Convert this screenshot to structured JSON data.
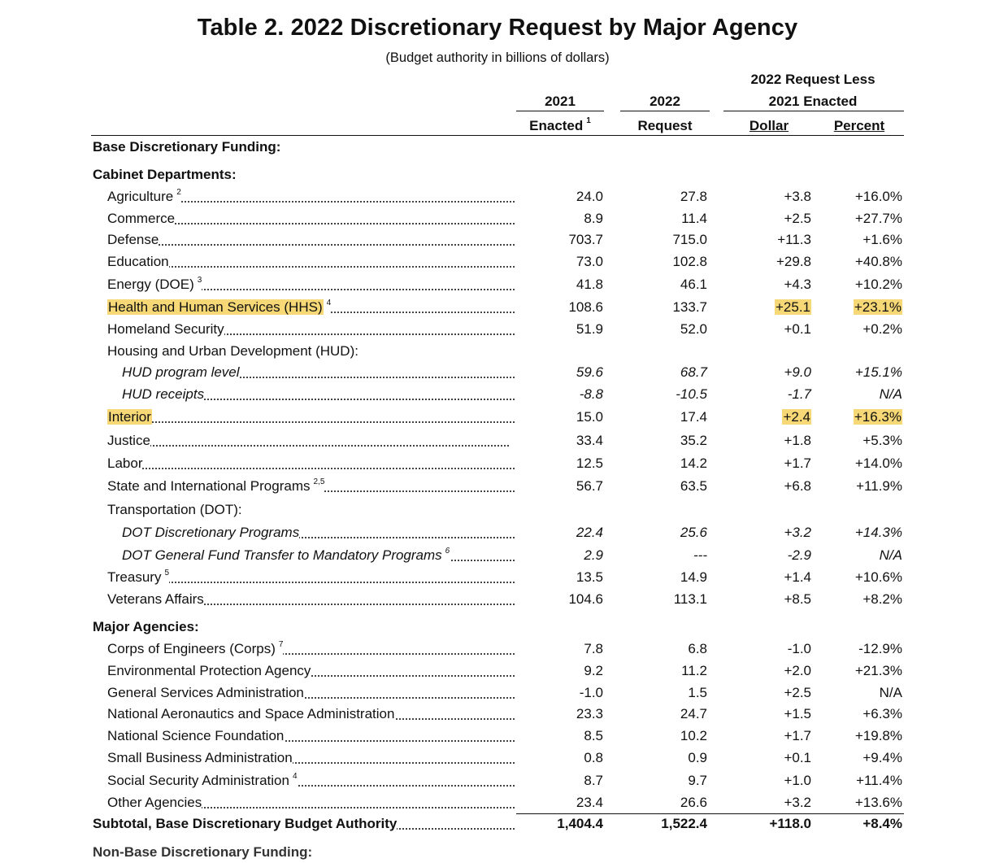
{
  "title": "Table 2.  2022 Discretionary Request by Major Agency",
  "subtitle": "(Budget authority in billions of dollars)",
  "headers": {
    "col1_line1": "2021",
    "col1_line2": "Enacted",
    "col1_sup": "1",
    "col2_line1": "2022",
    "col2_line2": "Request",
    "group_line1": "2022 Request Less",
    "group_line2": "2021 Enacted",
    "col3": "Dollar",
    "col4": "Percent"
  },
  "sections": {
    "base": "Base Discretionary Funding:",
    "cabinet": "Cabinet Departments:",
    "major": "Major Agencies:",
    "nonbase_partial": "Non-Base Discretionary Funding:"
  },
  "rows": [
    {
      "label": "Agriculture",
      "sup": "2",
      "v1": "24.0",
      "v2": "27.8",
      "v3": "+3.8",
      "v4": "+16.0%"
    },
    {
      "label": "Commerce",
      "sup": "",
      "v1": "8.9",
      "v2": "11.4",
      "v3": "+2.5",
      "v4": "+27.7%"
    },
    {
      "label": "Defense",
      "sup": "",
      "v1": "703.7",
      "v2": "715.0",
      "v3": "+11.3",
      "v4": "+1.6%"
    },
    {
      "label": "Education",
      "sup": "",
      "v1": "73.0",
      "v2": "102.8",
      "v3": "+29.8",
      "v4": "+40.8%"
    },
    {
      "label": "Energy (DOE)",
      "sup": "3",
      "v1": "41.8",
      "v2": "46.1",
      "v3": "+4.3",
      "v4": "+10.2%"
    },
    {
      "label": "Health and Human Services (HHS)",
      "sup": "4",
      "v1": "108.6",
      "v2": "133.7",
      "v3": "+25.1",
      "v4": "+23.1%"
    },
    {
      "label": "Homeland Security",
      "sup": "",
      "v1": "51.9",
      "v2": "52.0",
      "v3": "+0.1",
      "v4": "+0.2%"
    },
    {
      "label": "Housing and Urban Development (HUD):",
      "sup": "",
      "v1": "",
      "v2": "",
      "v3": "",
      "v4": ""
    },
    {
      "label": "HUD program level",
      "sup": "",
      "v1": "59.6",
      "v2": "68.7",
      "v3": "+9.0",
      "v4": "+15.1%"
    },
    {
      "label": "HUD receipts",
      "sup": "",
      "v1": "-8.8",
      "v2": "-10.5",
      "v3": "-1.7",
      "v4": "N/A"
    },
    {
      "label": "Interior",
      "sup": "",
      "v1": "15.0",
      "v2": "17.4",
      "v3": "+2.4",
      "v4": "+16.3%"
    },
    {
      "label": "Justice",
      "sup": "",
      "v1": "33.4",
      "v2": "35.2",
      "v3": "+1.8",
      "v4": "+5.3%"
    },
    {
      "label": "Labor",
      "sup": "",
      "v1": "12.5",
      "v2": "14.2",
      "v3": "+1.7",
      "v4": "+14.0%"
    },
    {
      "label": "State and International Programs",
      "sup": "2,5",
      "v1": "56.7",
      "v2": "63.5",
      "v3": "+6.8",
      "v4": "+11.9%"
    },
    {
      "label": "Transportation (DOT):",
      "sup": "",
      "v1": "",
      "v2": "",
      "v3": "",
      "v4": ""
    },
    {
      "label": "DOT Discretionary Programs",
      "sup": "",
      "v1": "22.4",
      "v2": "25.6",
      "v3": "+3.2",
      "v4": "+14.3%"
    },
    {
      "label": "DOT General Fund Transfer to Mandatory Programs",
      "sup": "6",
      "v1": "2.9",
      "v2": "---",
      "v3": "-2.9",
      "v4": "N/A"
    },
    {
      "label": "Treasury",
      "sup": "5",
      "v1": "13.5",
      "v2": "14.9",
      "v3": "+1.4",
      "v4": "+10.6%"
    },
    {
      "label": "Veterans Affairs",
      "sup": "",
      "v1": "104.6",
      "v2": "113.1",
      "v3": "+8.5",
      "v4": "+8.2%"
    },
    {
      "label": "Corps of Engineers (Corps)",
      "sup": "7",
      "v1": "7.8",
      "v2": "6.8",
      "v3": "-1.0",
      "v4": "-12.9%"
    },
    {
      "label": "Environmental Protection Agency",
      "sup": "",
      "v1": "9.2",
      "v2": "11.2",
      "v3": "+2.0",
      "v4": "+21.3%"
    },
    {
      "label": "General Services Administration",
      "sup": "",
      "v1": "-1.0",
      "v2": "1.5",
      "v3": "+2.5",
      "v4": "N/A"
    },
    {
      "label": "National Aeronautics and Space Administration",
      "sup": "",
      "v1": "23.3",
      "v2": "24.7",
      "v3": "+1.5",
      "v4": "+6.3%"
    },
    {
      "label": "National Science Foundation",
      "sup": "",
      "v1": "8.5",
      "v2": "10.2",
      "v3": "+1.7",
      "v4": "+19.8%"
    },
    {
      "label": "Small Business Administration",
      "sup": "",
      "v1": "0.8",
      "v2": "0.9",
      "v3": "+0.1",
      "v4": "+9.4%"
    },
    {
      "label": "Social Security Administration",
      "sup": "4",
      "v1": "8.7",
      "v2": "9.7",
      "v3": "+1.0",
      "v4": "+11.4%"
    },
    {
      "label": "Other Agencies",
      "sup": "",
      "v1": "23.4",
      "v2": "26.6",
      "v3": "+3.2",
      "v4": "+13.6%"
    },
    {
      "label": "Subtotal, Base Discretionary Budget Authority",
      "sup": "",
      "v1": "1,404.4",
      "v2": "1,522.4",
      "v3": "+118.0",
      "v4": "+8.4%"
    }
  ],
  "highlight_color": "#f6d876"
}
